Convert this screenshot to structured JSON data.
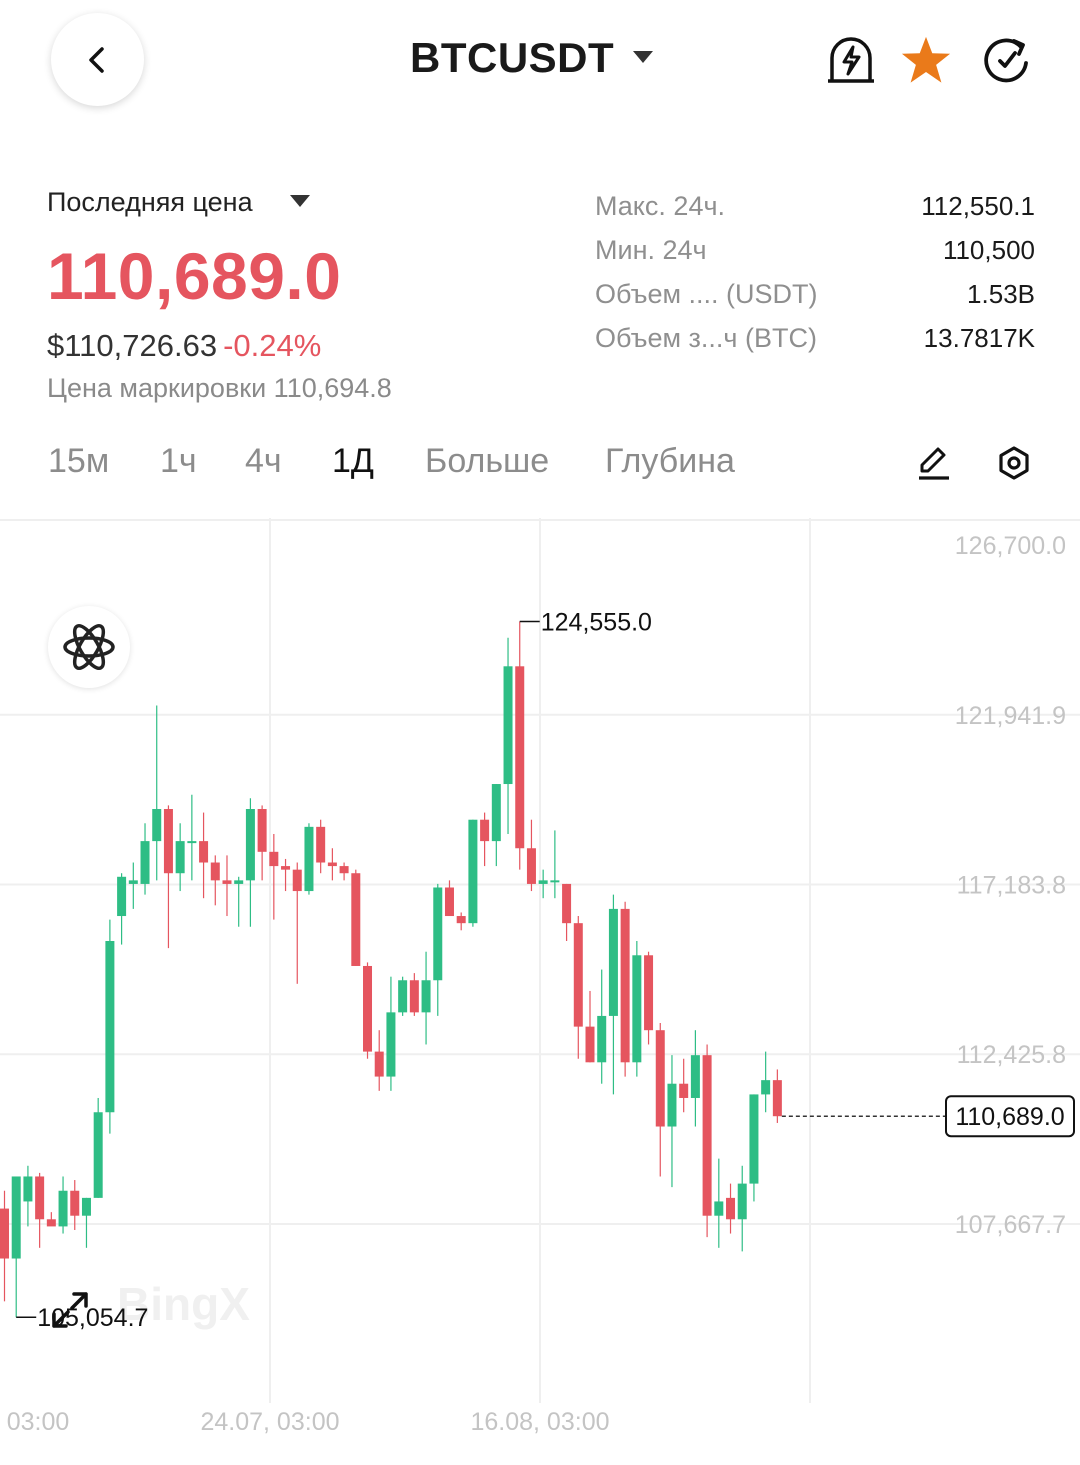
{
  "header": {
    "symbol": "BTCUSDT",
    "icons": [
      "back-icon",
      "alert-bell-icon",
      "favorite-star-icon",
      "share-icon"
    ],
    "star_color": "#ea7a1a"
  },
  "price": {
    "type_label": "Последняя цена",
    "last": "110,689.0",
    "usd": "$110,726.63",
    "change": "-0.24%",
    "mark": "Цена маркировки 110,694.8",
    "color_down": "#e5555f",
    "color_up": "#2ebd85"
  },
  "stats": [
    {
      "label": "Макс. 24ч.",
      "value": "112,550.1"
    },
    {
      "label": "Мин. 24ч",
      "value": "110,500"
    },
    {
      "label": "Объем .... (USDT)",
      "value": "1.53B"
    },
    {
      "label": "Объем з...ч (BTC)",
      "value": "13.7817K"
    }
  ],
  "tabs": [
    {
      "label": "15м",
      "active": false
    },
    {
      "label": "1ч",
      "active": false
    },
    {
      "label": "4ч",
      "active": false
    },
    {
      "label": "1Д",
      "active": true
    },
    {
      "label": "Больше",
      "active": false
    },
    {
      "label": "Глубина",
      "active": false
    }
  ],
  "tools": [
    "draw-pencil-icon",
    "settings-hexagon-icon"
  ],
  "chart_data": {
    "type": "candlestick",
    "interval": "1Д",
    "y_ticks": [
      "126,700.0",
      "121,941.9",
      "117,183.8",
      "112,425.8",
      "107,667.7"
    ],
    "x_ticks": [
      "03:00",
      "24.07, 03:00",
      "16.08, 03:00"
    ],
    "high_label": "124,555.0",
    "low_label": "105,054.7",
    "last_label": "110,689.0",
    "watermark": "BingX",
    "candles": [
      {
        "o": 108100,
        "h": 108600,
        "l": 105500,
        "c": 106700
      },
      {
        "o": 106700,
        "h": 109000,
        "l": 105055,
        "c": 109000
      },
      {
        "o": 108300,
        "h": 109300,
        "l": 107600,
        "c": 109000
      },
      {
        "o": 109000,
        "h": 109100,
        "l": 107000,
        "c": 107800
      },
      {
        "o": 107800,
        "h": 108000,
        "l": 107700,
        "c": 107600
      },
      {
        "o": 107600,
        "h": 109000,
        "l": 107400,
        "c": 108600
      },
      {
        "o": 108600,
        "h": 108900,
        "l": 107500,
        "c": 107900
      },
      {
        "o": 107900,
        "h": 108400,
        "l": 107000,
        "c": 108400
      },
      {
        "o": 108400,
        "h": 111200,
        "l": 108400,
        "c": 110800
      },
      {
        "o": 110800,
        "h": 116200,
        "l": 110200,
        "c": 115600
      },
      {
        "o": 116300,
        "h": 117500,
        "l": 115500,
        "c": 117400
      },
      {
        "o": 117200,
        "h": 117800,
        "l": 116500,
        "c": 117300
      },
      {
        "o": 117200,
        "h": 118900,
        "l": 116900,
        "c": 118400
      },
      {
        "o": 118400,
        "h": 122200,
        "l": 117300,
        "c": 119300
      },
      {
        "o": 119300,
        "h": 119400,
        "l": 115400,
        "c": 117500
      },
      {
        "o": 117500,
        "h": 118900,
        "l": 117000,
        "c": 118400
      },
      {
        "o": 118400,
        "h": 119700,
        "l": 117300,
        "c": 118400
      },
      {
        "o": 118400,
        "h": 119200,
        "l": 116800,
        "c": 117800
      },
      {
        "o": 117800,
        "h": 118000,
        "l": 116600,
        "c": 117300
      },
      {
        "o": 117300,
        "h": 118000,
        "l": 116300,
        "c": 117200
      },
      {
        "o": 117200,
        "h": 117400,
        "l": 116000,
        "c": 117300
      },
      {
        "o": 117300,
        "h": 119600,
        "l": 116000,
        "c": 119300
      },
      {
        "o": 119300,
        "h": 119400,
        "l": 117300,
        "c": 118100
      },
      {
        "o": 118100,
        "h": 118600,
        "l": 116200,
        "c": 117700
      },
      {
        "o": 117700,
        "h": 117900,
        "l": 117000,
        "c": 117600
      },
      {
        "o": 117600,
        "h": 117800,
        "l": 114400,
        "c": 117000
      },
      {
        "o": 117000,
        "h": 118900,
        "l": 116900,
        "c": 118800
      },
      {
        "o": 118800,
        "h": 119000,
        "l": 117500,
        "c": 117800
      },
      {
        "o": 117800,
        "h": 118200,
        "l": 117300,
        "c": 117700
      },
      {
        "o": 117700,
        "h": 117800,
        "l": 117300,
        "c": 117500
      },
      {
        "o": 117500,
        "h": 117600,
        "l": 114900,
        "c": 114900
      },
      {
        "o": 114900,
        "h": 115000,
        "l": 112300,
        "c": 112500
      },
      {
        "o": 112500,
        "h": 113100,
        "l": 111400,
        "c": 111800
      },
      {
        "o": 111800,
        "h": 114600,
        "l": 111400,
        "c": 113600
      },
      {
        "o": 113600,
        "h": 114600,
        "l": 113500,
        "c": 114500
      },
      {
        "o": 114500,
        "h": 114700,
        "l": 113500,
        "c": 113600
      },
      {
        "o": 113600,
        "h": 115300,
        "l": 112700,
        "c": 114500
      },
      {
        "o": 114500,
        "h": 117200,
        "l": 113500,
        "c": 117100
      },
      {
        "o": 117100,
        "h": 117300,
        "l": 116400,
        "c": 116300
      },
      {
        "o": 116300,
        "h": 116400,
        "l": 115900,
        "c": 116100
      },
      {
        "o": 116100,
        "h": 119000,
        "l": 116000,
        "c": 119000
      },
      {
        "o": 119000,
        "h": 119200,
        "l": 117700,
        "c": 118400
      },
      {
        "o": 118400,
        "h": 120000,
        "l": 117700,
        "c": 120000
      },
      {
        "o": 120000,
        "h": 124100,
        "l": 118600,
        "c": 123300
      },
      {
        "o": 123300,
        "h": 124555,
        "l": 117600,
        "c": 118200
      },
      {
        "o": 118200,
        "h": 119000,
        "l": 117000,
        "c": 117200
      },
      {
        "o": 117200,
        "h": 117600,
        "l": 116800,
        "c": 117300
      },
      {
        "o": 117300,
        "h": 118700,
        "l": 116800,
        "c": 117300
      },
      {
        "o": 117200,
        "h": 117200,
        "l": 115600,
        "c": 116100
      },
      {
        "o": 116100,
        "h": 116300,
        "l": 112300,
        "c": 113200
      },
      {
        "o": 113200,
        "h": 114200,
        "l": 112200,
        "c": 112200
      },
      {
        "o": 112200,
        "h": 114800,
        "l": 111600,
        "c": 113500
      },
      {
        "o": 113500,
        "h": 116900,
        "l": 111300,
        "c": 116500
      },
      {
        "o": 116500,
        "h": 116700,
        "l": 111800,
        "c": 112200
      },
      {
        "o": 112200,
        "h": 115600,
        "l": 111800,
        "c": 115200
      },
      {
        "o": 115200,
        "h": 115300,
        "l": 112700,
        "c": 113100
      },
      {
        "o": 113100,
        "h": 113300,
        "l": 109000,
        "c": 110400
      },
      {
        "o": 110400,
        "h": 112400,
        "l": 108700,
        "c": 111600
      },
      {
        "o": 111600,
        "h": 112300,
        "l": 110800,
        "c": 111200
      },
      {
        "o": 111200,
        "h": 113100,
        "l": 110400,
        "c": 112400
      },
      {
        "o": 112400,
        "h": 112700,
        "l": 107300,
        "c": 107900
      },
      {
        "o": 107900,
        "h": 109500,
        "l": 107000,
        "c": 108300
      },
      {
        "o": 108400,
        "h": 108800,
        "l": 107400,
        "c": 107800
      },
      {
        "o": 107800,
        "h": 109300,
        "l": 106900,
        "c": 108800
      },
      {
        "o": 108800,
        "h": 111300,
        "l": 108300,
        "c": 111300
      },
      {
        "o": 111300,
        "h": 112500,
        "l": 110800,
        "c": 111700
      },
      {
        "o": 111700,
        "h": 112000,
        "l": 110500,
        "c": 110689
      }
    ]
  }
}
